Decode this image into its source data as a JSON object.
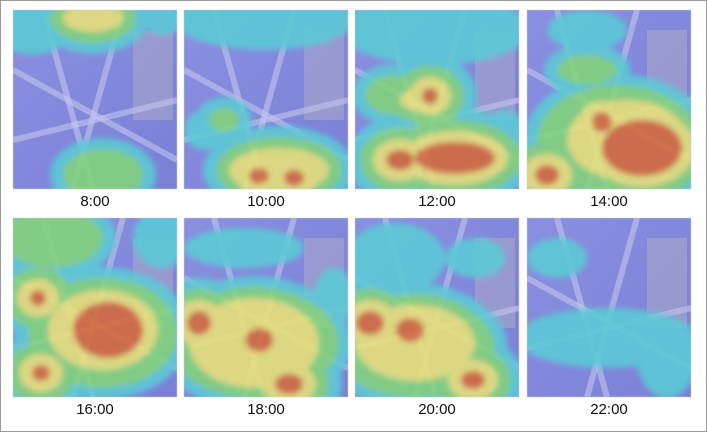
{
  "panels": [
    {
      "label": "8:00"
    },
    {
      "label": "10:00"
    },
    {
      "label": "12:00"
    },
    {
      "label": "14:00"
    },
    {
      "label": "16:00"
    },
    {
      "label": "18:00"
    },
    {
      "label": "20:00"
    },
    {
      "label": "22:00"
    }
  ]
}
